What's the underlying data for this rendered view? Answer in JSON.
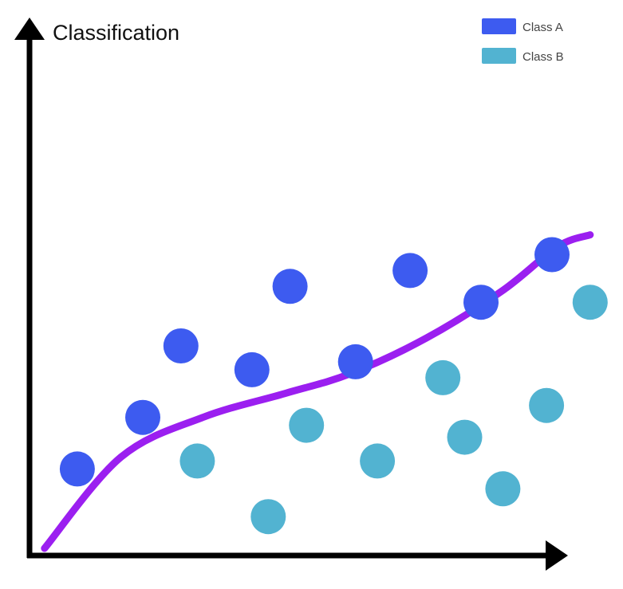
{
  "chart_data": {
    "type": "scatter",
    "title": "Classification",
    "xlabel": "",
    "ylabel": "",
    "xlim": [
      0,
      100
    ],
    "ylim": [
      0,
      100
    ],
    "grid": false,
    "legend": "top-right",
    "axis_color": "#000000",
    "series": [
      {
        "name": "Class A",
        "color": "#3d5bf0",
        "points": [
          {
            "x": 7,
            "y": 20
          },
          {
            "x": 19,
            "y": 33
          },
          {
            "x": 26,
            "y": 51
          },
          {
            "x": 39,
            "y": 45
          },
          {
            "x": 46,
            "y": 66
          },
          {
            "x": 58,
            "y": 47
          },
          {
            "x": 68,
            "y": 70
          },
          {
            "x": 81,
            "y": 62
          },
          {
            "x": 94,
            "y": 74
          }
        ]
      },
      {
        "name": "Class B",
        "color": "#52b3d1",
        "points": [
          {
            "x": 29,
            "y": 22
          },
          {
            "x": 42,
            "y": 8
          },
          {
            "x": 49,
            "y": 31
          },
          {
            "x": 62,
            "y": 22
          },
          {
            "x": 74,
            "y": 43
          },
          {
            "x": 78,
            "y": 28
          },
          {
            "x": 85,
            "y": 15
          },
          {
            "x": 93,
            "y": 36
          },
          {
            "x": 101,
            "y": 62
          }
        ]
      }
    ],
    "decision_boundary": {
      "color": "#9b1ff0",
      "points": [
        {
          "x": 1,
          "y": 0
        },
        {
          "x": 15,
          "y": 23
        },
        {
          "x": 30,
          "y": 33
        },
        {
          "x": 45,
          "y": 39
        },
        {
          "x": 57,
          "y": 44
        },
        {
          "x": 71,
          "y": 53
        },
        {
          "x": 85,
          "y": 65
        },
        {
          "x": 95,
          "y": 76
        },
        {
          "x": 101,
          "y": 79
        }
      ]
    }
  }
}
